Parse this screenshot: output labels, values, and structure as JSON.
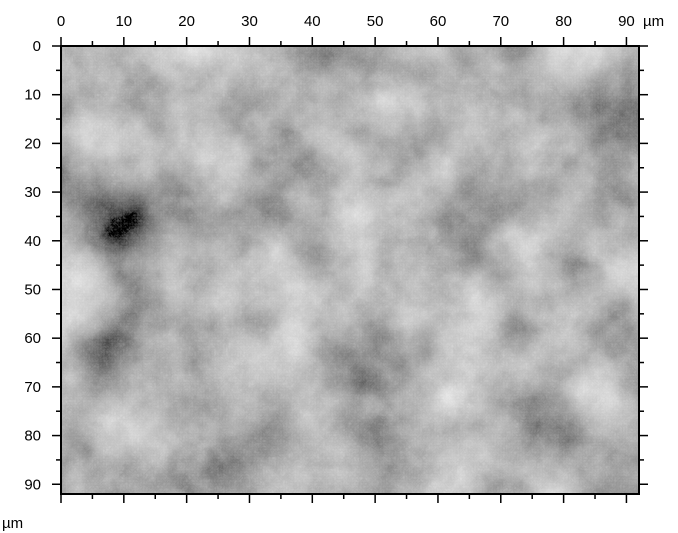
{
  "image": {
    "kind": "grayscale microscopy height map",
    "colors": {
      "background": "#ffffff",
      "axis": "#000000",
      "gray_min": "#3a3a3a",
      "gray_max": "#e6e6e6"
    }
  },
  "axes": {
    "x": {
      "unit_label": "µm",
      "range": [
        0,
        92
      ],
      "major_ticks": [
        "0",
        "10",
        "20",
        "30",
        "40",
        "50",
        "60",
        "70",
        "80",
        "90"
      ],
      "minor_step": 5
    },
    "y": {
      "unit_label": "µm",
      "range": [
        0,
        92
      ],
      "major_ticks": [
        "0",
        "10",
        "20",
        "30",
        "40",
        "50",
        "60",
        "70",
        "80",
        "90"
      ],
      "minor_step": 5,
      "direction": "down"
    }
  }
}
